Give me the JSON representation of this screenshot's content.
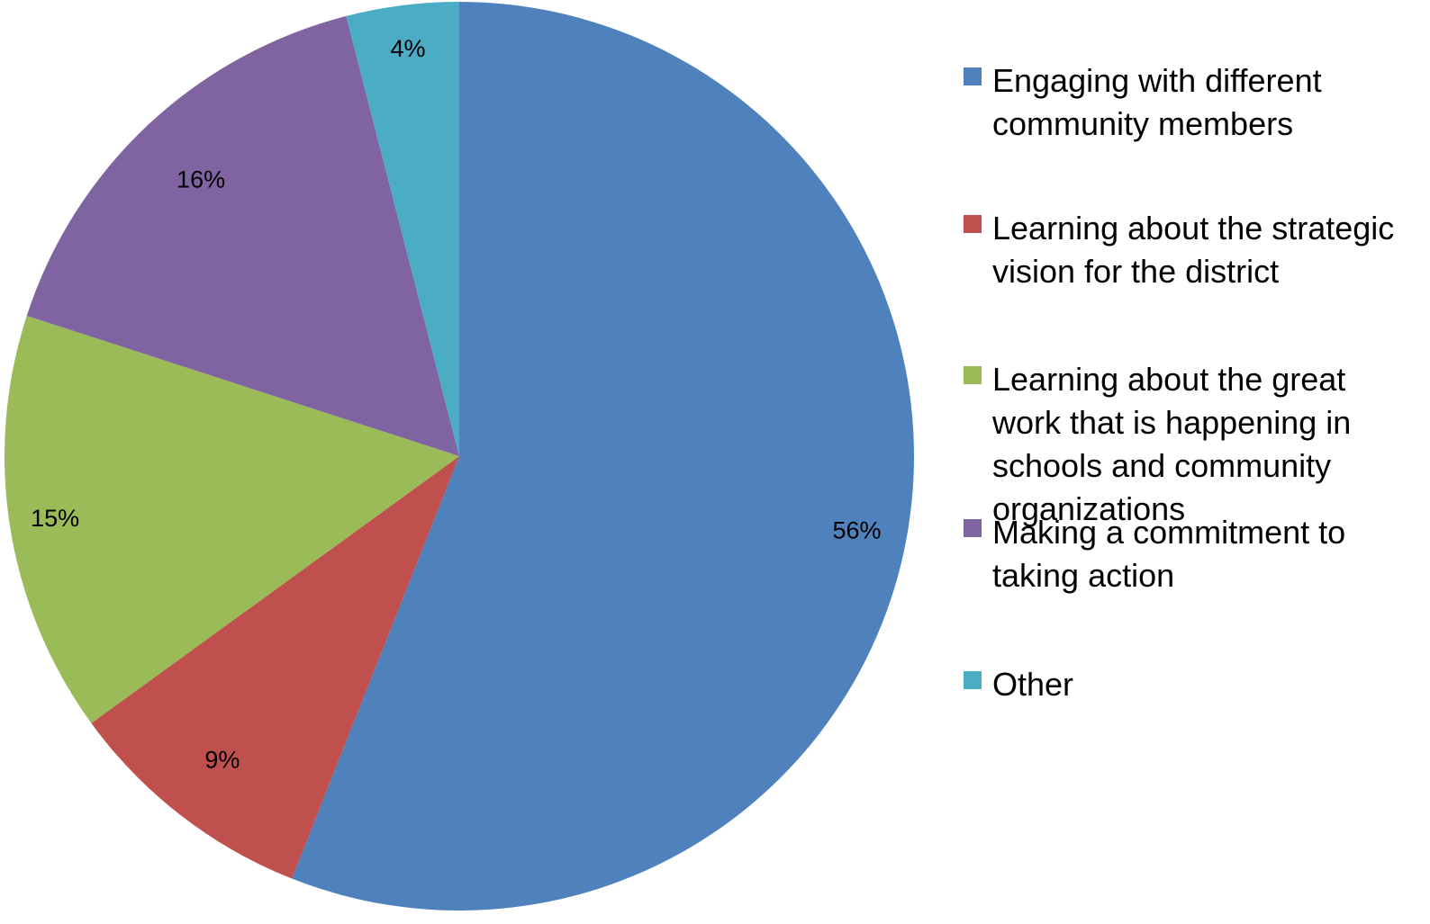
{
  "chart_data": {
    "type": "pie",
    "start_angle": "12 o'clock",
    "direction": "clockwise",
    "legend_position": "right",
    "slices": [
      {
        "name": "Engaging with different community members",
        "value": 56,
        "label": "56%",
        "color": "#4F81BD"
      },
      {
        "name": "Learning about the strategic vision for the district",
        "value": 9,
        "label": "9%",
        "color": "#C0504D"
      },
      {
        "name": "Learning about the great work that is happening in schools and community organizations",
        "value": 15,
        "label": "15%",
        "color": "#9BBB59"
      },
      {
        "name": "Making a commitment to taking action",
        "value": 16,
        "label": "16%",
        "color": "#8064A2"
      },
      {
        "name": "Other",
        "value": 4,
        "label": "4%",
        "color": "#4BACC6"
      }
    ]
  }
}
